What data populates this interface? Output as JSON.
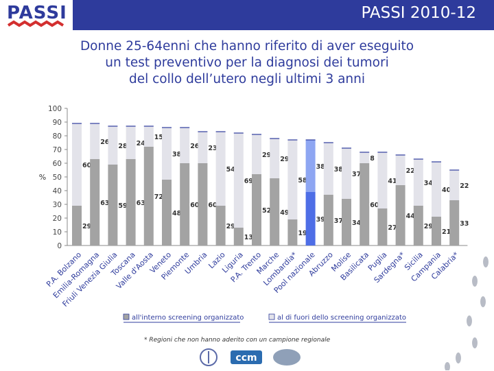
{
  "header": {
    "title": "PASSI 2010-12",
    "logo_text": "PASSI"
  },
  "subtitle_lines": [
    "Donne 25-64enni che hanno riferito di aver eseguito",
    "un test preventivo per la diagnosi dei tumori",
    "del collo dell’utero negli ultimi 3 anni"
  ],
  "footnote": "* Regioni che non hanno aderito con un campione regionale",
  "logos": {
    "ccm": "ccm"
  },
  "colors": {
    "header": "#2e3b9c",
    "inside_default": "#a3a3a3",
    "outside_default": "#e3e3ea",
    "inside_highlight": "#4e6ee6",
    "outside_highlight": "#8ea6f2",
    "bar_edge": "#2e3b9c"
  },
  "chart_data": {
    "type": "bar",
    "stacked": true,
    "title": "Donne 25-64enni che hanno riferito di aver eseguito un test preventivo per la diagnosi dei tumori del collo dell’utero negli ultimi 3 anni",
    "ylabel": "%",
    "ylim": [
      0,
      100
    ],
    "yticks": [
      0,
      10,
      20,
      30,
      40,
      50,
      60,
      70,
      80,
      90,
      100
    ],
    "categories": [
      "P.A. Bolzano",
      "Emilia-Romagna",
      "Friuli Venezia Giulia",
      "Toscana",
      "Valle d'Aosta",
      "Veneto",
      "Piemonte",
      "Umbria",
      "Lazio",
      "Liguria",
      "P.A. Trento",
      "Marche",
      "Lombardia*",
      "Pool nazionale",
      "Abruzzo",
      "Molise",
      "Basilicata",
      "Puglia",
      "Sardegna*",
      "Sicilia",
      "Campania",
      "Calabria*"
    ],
    "highlight_index": 13,
    "series": [
      {
        "name": "all'interno screening organizzato",
        "values": [
          29,
          63,
          59,
          63,
          72,
          48,
          60,
          60,
          29,
          13,
          52,
          49,
          19,
          39,
          37,
          34,
          60,
          27,
          44,
          29,
          21,
          33
        ]
      },
      {
        "name": "al di fuori dello screening organizzato",
        "values": [
          60,
          26,
          28,
          24,
          15,
          38,
          26,
          23,
          54,
          69,
          29,
          29,
          58,
          38,
          38,
          37,
          8,
          41,
          22,
          34,
          40,
          22
        ]
      }
    ],
    "legend_position": "bottom"
  }
}
